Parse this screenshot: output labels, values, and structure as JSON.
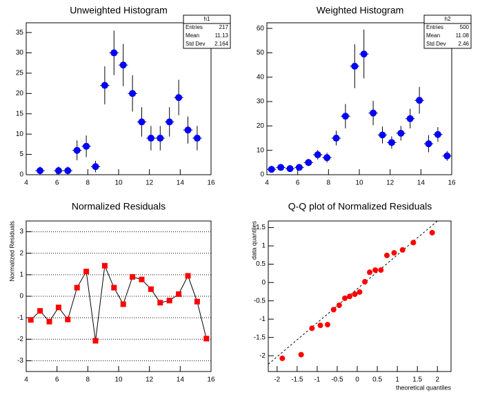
{
  "chart_data": [
    {
      "type": "histogram",
      "title": "Unweighted Histogram",
      "bins": [
        4,
        4.6,
        5.2,
        5.8,
        6.4,
        7,
        7.6,
        8.2,
        8.8,
        9.4,
        10,
        10.6,
        11.2,
        11.8,
        12.4,
        13,
        13.6,
        14.2,
        14.8,
        15.4,
        16
      ],
      "values": [
        null,
        1,
        null,
        1,
        1,
        6,
        7,
        2,
        22,
        30,
        27,
        20,
        13,
        9,
        9,
        13,
        19,
        11,
        9,
        null
      ],
      "errors": [
        null,
        1,
        null,
        1,
        1,
        2.45,
        2.65,
        1.41,
        4.69,
        5.48,
        5.2,
        4.47,
        3.61,
        3,
        3,
        3.61,
        4.36,
        3.32,
        3,
        null
      ],
      "color": "#0000ff",
      "xlim": [
        4,
        16
      ],
      "ylim": [
        0,
        37.4
      ],
      "xticks": [
        4,
        6,
        8,
        10,
        12,
        14,
        16
      ],
      "yticks": [
        0,
        5,
        10,
        15,
        20,
        25,
        30,
        35
      ],
      "stats": {
        "title": "h1",
        "rows": [
          [
            "Entries",
            "217"
          ],
          [
            "Mean",
            "11.13"
          ],
          [
            "Std Dev",
            "2.164"
          ]
        ]
      }
    },
    {
      "type": "histogram",
      "title": "Weighted Histogram",
      "bins": [
        4,
        4.6,
        5.2,
        5.8,
        6.4,
        7,
        7.6,
        8.2,
        8.8,
        9.4,
        10,
        10.6,
        11.2,
        11.8,
        12.4,
        13,
        13.6,
        14.2,
        14.8,
        15.4,
        16
      ],
      "values": [
        2.2,
        3,
        2.5,
        3,
        5,
        8.2,
        7,
        15,
        24,
        44.5,
        49.5,
        25.3,
        16.3,
        13.2,
        17,
        23,
        30.5,
        12.7,
        16.5,
        7.7
      ],
      "errors": [
        1,
        1.3,
        1.1,
        1.3,
        1.5,
        2,
        2,
        3,
        5,
        9,
        10,
        5,
        3.5,
        2.5,
        3,
        4,
        5.5,
        3.5,
        3,
        2
      ],
      "color": "#0000ff",
      "xlim": [
        4,
        16
      ],
      "ylim": [
        0,
        62.3
      ],
      "xticks": [
        4,
        6,
        8,
        10,
        12,
        14,
        16
      ],
      "yticks": [
        0,
        10,
        20,
        30,
        40,
        50,
        60
      ],
      "stats": {
        "title": "h2",
        "rows": [
          [
            "Entries",
            "500"
          ],
          [
            "Mean",
            "11.08"
          ],
          [
            "Std Dev",
            "2.46"
          ]
        ]
      }
    },
    {
      "type": "line",
      "title": "Normalized Residuals",
      "y_label": "Normalized Residuals",
      "x": [
        4.3,
        4.9,
        5.5,
        6.1,
        6.7,
        7.3,
        7.9,
        8.5,
        9.1,
        9.7,
        10.3,
        10.9,
        11.5,
        12.1,
        12.7,
        13.3,
        13.9,
        14.5,
        15.1,
        15.7
      ],
      "values": [
        -1.1,
        -0.68,
        -1.18,
        -0.52,
        -1.08,
        0.4,
        1.15,
        -2.07,
        1.42,
        0.4,
        -0.37,
        0.9,
        0.78,
        0.33,
        -0.3,
        -0.2,
        0.1,
        0.95,
        -0.25,
        -1.97
      ],
      "color": "#ff0000",
      "xlim": [
        4,
        16
      ],
      "ylim": [
        -3.5,
        3.5
      ],
      "xticks": [
        4,
        6,
        8,
        10,
        12,
        14,
        16
      ],
      "yticks": [
        -3,
        -2,
        -1,
        0,
        1,
        2,
        3
      ],
      "grid": true
    },
    {
      "type": "scatter",
      "title": "Q-Q plot of Normalized Residuals",
      "x_label": "theoretical quantiles",
      "y_label": "data quantiles",
      "x": [
        -1.87,
        -1.4,
        -1.13,
        -0.92,
        -0.74,
        -0.59,
        -0.45,
        -0.31,
        -0.19,
        -0.06,
        0.06,
        0.19,
        0.31,
        0.45,
        0.59,
        0.74,
        0.92,
        1.13,
        1.4,
        1.87
      ],
      "values": [
        -2.07,
        -1.97,
        -1.25,
        -1.17,
        -1.15,
        -0.74,
        -0.62,
        -0.43,
        -0.38,
        -0.32,
        -0.26,
        0.02,
        0.28,
        0.34,
        0.34,
        0.74,
        0.81,
        0.89,
        1.09,
        1.36
      ],
      "color": "#ff0000",
      "xlim": [
        -2.22,
        2.34
      ],
      "ylim": [
        -2.43,
        1.68
      ],
      "xticks": [
        -2,
        -1.5,
        -1,
        -0.5,
        0,
        0.5,
        1,
        1.5,
        2
      ],
      "yticks": [
        -2,
        -1.5,
        -1,
        -0.5,
        0,
        0.5,
        1,
        1.5
      ],
      "reference_line": {
        "x": [
          -2.22,
          2.0
        ],
        "y": [
          -2.23,
          1.68
        ]
      }
    }
  ]
}
